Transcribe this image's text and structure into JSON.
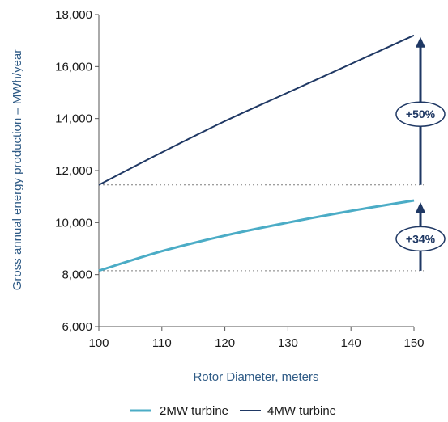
{
  "chart_data": {
    "type": "line",
    "x": [
      100,
      110,
      120,
      130,
      140,
      150
    ],
    "series": [
      {
        "name": "2MW turbine",
        "color": "#4bacc6",
        "values": [
          8150,
          8900,
          9500,
          10000,
          10450,
          10850
        ]
      },
      {
        "name": "4MW turbine",
        "color": "#1f3864",
        "values": [
          11450,
          12700,
          13900,
          15000,
          16100,
          17200
        ]
      }
    ],
    "xlabel": "Rotor Diameter, meters",
    "ylabel": "Gross annual energy production – MWh/year",
    "xlim": [
      100,
      150
    ],
    "ylim": [
      6000,
      18000
    ],
    "x_ticks": [
      100,
      110,
      120,
      130,
      140,
      150
    ],
    "x_tick_labels": [
      "100",
      "110",
      "120",
      "130",
      "140",
      "150"
    ],
    "y_ticks": [
      6000,
      8000,
      10000,
      12000,
      14000,
      16000,
      18000
    ],
    "y_tick_labels": [
      "6,000",
      "8,000",
      "10,000",
      "12,000",
      "14,000",
      "16,000",
      "18,000"
    ],
    "grid": false,
    "legend_position": "bottom",
    "annotations": [
      {
        "label": "+50%",
        "series": "4MW turbine",
        "from_x": 100,
        "to_x": 150
      },
      {
        "label": "+34%",
        "series": "2MW turbine",
        "from_x": 100,
        "to_x": 150
      }
    ],
    "reference_line_color": "#7f7f7f",
    "axis_color": "#555555",
    "arrow_color": "#1f3864"
  }
}
